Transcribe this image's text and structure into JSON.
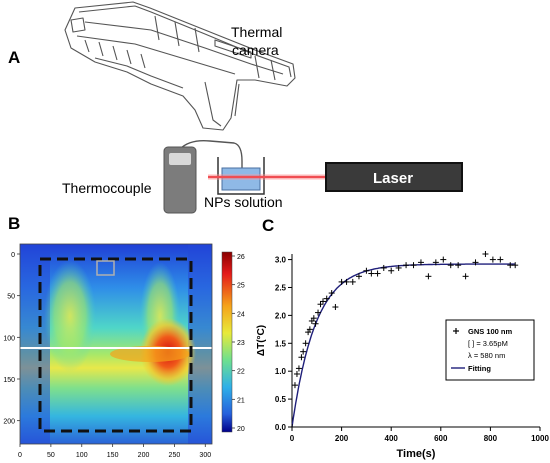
{
  "panel_a": {
    "letter": "A",
    "camera_label_line1": "Thermal",
    "camera_label_line2": "camera",
    "thermocouple_label": "Thermocouple",
    "solution_label": "NPs solution",
    "laser_label": "Laser",
    "colors": {
      "laser_body": "#3a3a3a",
      "beam": "#e8242b",
      "liquid": "#8fb9e6",
      "device": "#7c7c7c"
    }
  },
  "panel_b": {
    "letter": "B",
    "x_ticks": [
      "0",
      "50",
      "100",
      "150",
      "200",
      "250",
      "300"
    ],
    "y_ticks": [
      "0",
      "50",
      "100",
      "150",
      "200"
    ],
    "colorbar_ticks": [
      "26",
      "25",
      "24",
      "23",
      "22",
      "21",
      "20"
    ]
  },
  "panel_c": {
    "letter": "C"
  },
  "chart_data": {
    "type": "scatter",
    "xlabel": "Time(s)",
    "ylabel": "ΔT(°C)",
    "xlim": [
      0,
      1000
    ],
    "ylim": [
      0,
      3.1
    ],
    "x_ticks": [
      "0",
      "200",
      "400",
      "600",
      "800",
      "1000"
    ],
    "y_ticks": [
      "0.0",
      "0.5",
      "1.0",
      "1.5",
      "2.0",
      "2.5",
      "3.0"
    ],
    "legend_position": "right",
    "legend": {
      "marker_label": "GNS 100 nm",
      "conc_line": "[ ] = 3.65pM",
      "lambda_line": "λ = 580 nm",
      "fit_label": "Fitting"
    },
    "colors": {
      "points": "#000000",
      "fit": "#1f1f7a"
    },
    "fit": {
      "model": "exponential",
      "amplitude": 2.92,
      "tau": 95
    },
    "series": [
      {
        "name": "GNS 100 nm",
        "x": [
          0,
          12,
          20,
          28,
          38,
          45,
          55,
          65,
          72,
          80,
          88,
          95,
          105,
          115,
          125,
          140,
          160,
          175,
          200,
          220,
          245,
          270,
          300,
          320,
          345,
          370,
          400,
          430,
          460,
          490,
          520,
          550,
          580,
          610,
          640,
          670,
          700,
          740,
          780,
          810,
          840,
          880,
          900
        ],
        "y": [
          0.0,
          0.75,
          0.95,
          1.05,
          1.25,
          1.35,
          1.5,
          1.7,
          1.75,
          1.9,
          1.95,
          1.85,
          2.05,
          2.2,
          2.25,
          2.3,
          2.4,
          2.15,
          2.6,
          2.6,
          2.6,
          2.7,
          2.8,
          2.75,
          2.75,
          2.85,
          2.8,
          2.85,
          2.9,
          2.9,
          2.95,
          2.7,
          2.95,
          3.0,
          2.9,
          2.9,
          2.7,
          2.95,
          3.1,
          3.0,
          3.0,
          2.9,
          2.9
        ]
      }
    ]
  }
}
